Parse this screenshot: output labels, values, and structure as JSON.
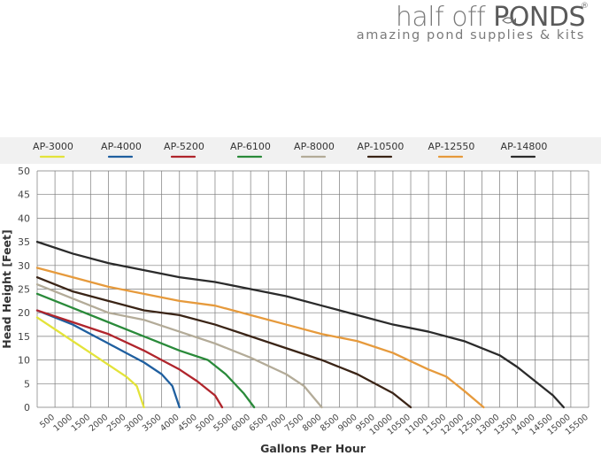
{
  "logo": {
    "brand_light": "half off ",
    "brand_bold": "PONDS",
    "registered": "®",
    "tagline": "amazing pond supplies & kits",
    "icon": "fish-icon"
  },
  "chart_data": {
    "type": "line",
    "xlabel": "Gallons Per Hour",
    "ylabel": "Head Height [Feet]",
    "xlim": [
      0,
      15500
    ],
    "ylim": [
      0,
      50
    ],
    "grid": true,
    "legend_position": "top",
    "x_ticks": [
      "500",
      "1000",
      "1500",
      "2000",
      "2500",
      "3000",
      "3500",
      "4000",
      "4500",
      "5000",
      "5500",
      "6000",
      "6500",
      "7000",
      "7500",
      "8000",
      "8500",
      "9000",
      "9500",
      "10000",
      "10500",
      "11000",
      "11500",
      "12000",
      "12500",
      "13000",
      "13500",
      "14000",
      "14500",
      "15000",
      "15500"
    ],
    "y_ticks": [
      "0",
      "5",
      "10",
      "15",
      "20",
      "25",
      "30",
      "35",
      "40",
      "45",
      "50"
    ],
    "series": [
      {
        "name": "AP-3000",
        "color": "#e3e33a",
        "points": [
          [
            0,
            19
          ],
          [
            500,
            16.5
          ],
          [
            1000,
            14
          ],
          [
            1500,
            11.5
          ],
          [
            2000,
            9
          ],
          [
            2500,
            6.5
          ],
          [
            2800,
            4.5
          ],
          [
            3000,
            0
          ]
        ]
      },
      {
        "name": "AP-4000",
        "color": "#1f5f9f",
        "points": [
          [
            0,
            20.5
          ],
          [
            500,
            19
          ],
          [
            1000,
            17.5
          ],
          [
            1500,
            15.5
          ],
          [
            2000,
            13.5
          ],
          [
            2500,
            11.5
          ],
          [
            3000,
            9.5
          ],
          [
            3500,
            7
          ],
          [
            3800,
            4.5
          ],
          [
            4000,
            0
          ]
        ]
      },
      {
        "name": "AP-5200",
        "color": "#b0252c",
        "points": [
          [
            0,
            20.5
          ],
          [
            1000,
            18
          ],
          [
            2000,
            15.5
          ],
          [
            3000,
            12
          ],
          [
            3500,
            10
          ],
          [
            4000,
            8
          ],
          [
            4500,
            5.5
          ],
          [
            5000,
            2.5
          ],
          [
            5200,
            0
          ]
        ]
      },
      {
        "name": "AP-6100",
        "color": "#2a8a3a",
        "points": [
          [
            0,
            24
          ],
          [
            1000,
            21
          ],
          [
            2000,
            18
          ],
          [
            3000,
            15
          ],
          [
            4000,
            12
          ],
          [
            4800,
            10
          ],
          [
            5300,
            7
          ],
          [
            5800,
            3
          ],
          [
            6100,
            0
          ]
        ]
      },
      {
        "name": "AP-8000",
        "color": "#b3ab98",
        "points": [
          [
            0,
            26
          ],
          [
            1000,
            23
          ],
          [
            2000,
            20
          ],
          [
            3000,
            18.5
          ],
          [
            4000,
            16
          ],
          [
            5000,
            13.5
          ],
          [
            6000,
            10.5
          ],
          [
            7000,
            7
          ],
          [
            7500,
            4.5
          ],
          [
            8000,
            0
          ]
        ]
      },
      {
        "name": "AP-10500",
        "color": "#3a2416",
        "points": [
          [
            0,
            27.5
          ],
          [
            1000,
            24.5
          ],
          [
            2000,
            22.5
          ],
          [
            3000,
            20.5
          ],
          [
            4000,
            19.5
          ],
          [
            5000,
            17.5
          ],
          [
            6000,
            15
          ],
          [
            7000,
            12.5
          ],
          [
            8000,
            10
          ],
          [
            9000,
            7
          ],
          [
            10000,
            3
          ],
          [
            10500,
            0
          ]
        ]
      },
      {
        "name": "AP-12550",
        "color": "#e69a3c",
        "points": [
          [
            0,
            29.5
          ],
          [
            1000,
            27.5
          ],
          [
            2000,
            25.5
          ],
          [
            3000,
            24
          ],
          [
            4000,
            22.5
          ],
          [
            5000,
            21.5
          ],
          [
            6000,
            19.5
          ],
          [
            7000,
            17.5
          ],
          [
            8000,
            15.5
          ],
          [
            9000,
            14
          ],
          [
            10000,
            11.5
          ],
          [
            11000,
            8
          ],
          [
            11500,
            6.5
          ],
          [
            12000,
            3.5
          ],
          [
            12550,
            0
          ]
        ]
      },
      {
        "name": "AP-14800",
        "color": "#2b2b2b",
        "points": [
          [
            0,
            35
          ],
          [
            1000,
            32.5
          ],
          [
            2000,
            30.5
          ],
          [
            3000,
            29
          ],
          [
            4000,
            27.5
          ],
          [
            5000,
            26.5
          ],
          [
            6000,
            25
          ],
          [
            7000,
            23.5
          ],
          [
            8000,
            21.5
          ],
          [
            9000,
            19.5
          ],
          [
            10000,
            17.5
          ],
          [
            11000,
            16
          ],
          [
            12000,
            14
          ],
          [
            13000,
            11
          ],
          [
            13500,
            8.5
          ],
          [
            14000,
            5.5
          ],
          [
            14500,
            2.5
          ],
          [
            14800,
            0
          ]
        ]
      }
    ]
  }
}
